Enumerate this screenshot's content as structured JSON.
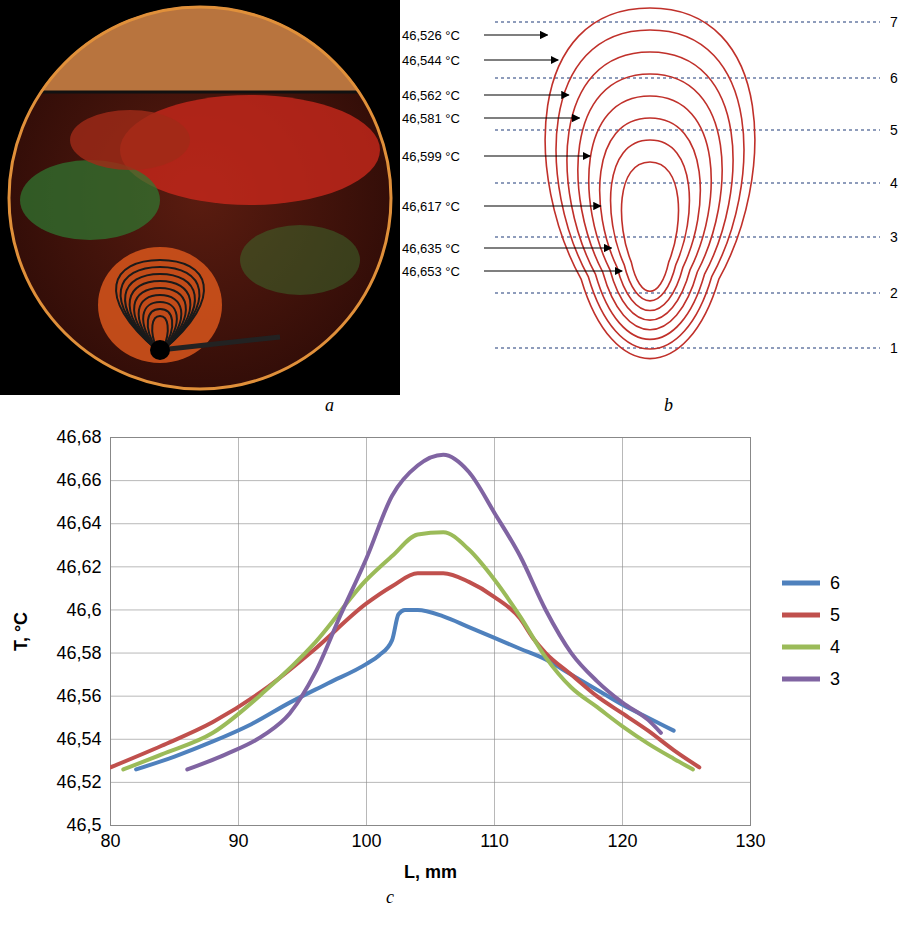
{
  "panel_labels": {
    "photo": "a",
    "diagram": "b",
    "chart": "c"
  },
  "diagram": {
    "isotherm_labels": [
      "46,526 °C",
      "46,544 °C",
      "46,562 °C",
      "46,581 °C",
      "46,599 °C",
      "46,617 °C",
      "46,635 °C",
      "46,653 °C"
    ],
    "section_lines": [
      "7",
      "6",
      "5",
      "4",
      "3",
      "2",
      "1"
    ]
  },
  "chart_data": {
    "type": "line",
    "x_label": "L, mm",
    "y_label": "T, °C",
    "xlim": [
      80,
      130
    ],
    "xticks": [
      80,
      90,
      100,
      110,
      120,
      130
    ],
    "ylim": [
      46.5,
      46.68
    ],
    "yticks": [
      {
        "value": 46.5,
        "label": "46,5"
      },
      {
        "value": 46.52,
        "label": "46,52"
      },
      {
        "value": 46.54,
        "label": "46,54"
      },
      {
        "value": 46.56,
        "label": "46,56"
      },
      {
        "value": 46.58,
        "label": "46,58"
      },
      {
        "value": 46.6,
        "label": "46,6"
      },
      {
        "value": 46.62,
        "label": "46,62"
      },
      {
        "value": 46.64,
        "label": "46,64"
      },
      {
        "value": 46.66,
        "label": "46,66"
      },
      {
        "value": 46.68,
        "label": "46,68"
      }
    ],
    "grid": true,
    "legend": "right",
    "series": [
      {
        "name": "6",
        "color": "#4f81bd",
        "x": [
          82,
          85,
          88,
          91,
          94,
          97,
          100,
          101,
          102,
          102.5,
          103,
          104,
          106,
          108,
          110,
          112,
          114,
          116,
          118,
          120,
          122,
          124
        ],
        "values": [
          46.526,
          46.532,
          46.539,
          46.547,
          46.557,
          46.566,
          46.575,
          46.579,
          46.586,
          46.598,
          46.6,
          46.6,
          46.597,
          46.592,
          46.587,
          46.582,
          46.577,
          46.57,
          46.563,
          46.556,
          46.55,
          46.544
        ]
      },
      {
        "name": "5",
        "color": "#c0504d",
        "x": [
          80,
          84,
          88,
          92,
          96,
          100,
          102,
          104,
          106,
          108,
          110,
          112,
          113,
          114,
          116,
          118,
          120,
          122,
          124,
          126
        ],
        "values": [
          46.527,
          46.537,
          46.548,
          46.563,
          46.582,
          46.603,
          46.611,
          46.617,
          46.617,
          46.613,
          46.606,
          46.596,
          46.587,
          46.58,
          46.57,
          46.56,
          46.552,
          46.544,
          46.535,
          46.527
        ]
      },
      {
        "name": "4",
        "color": "#9bbb59",
        "x": [
          81,
          84,
          88,
          92,
          96,
          100,
          102,
          104,
          106,
          108,
          110,
          112,
          114,
          116,
          118,
          120,
          122,
          124,
          125.5
        ],
        "values": [
          46.526,
          46.533,
          46.543,
          46.562,
          46.585,
          46.614,
          46.625,
          46.635,
          46.636,
          46.628,
          46.614,
          46.597,
          46.578,
          46.564,
          46.555,
          46.546,
          46.538,
          46.531,
          46.526
        ]
      },
      {
        "name": "3",
        "color": "#8064a2",
        "x": [
          86,
          89,
          92,
          94,
          96,
          98,
          100,
          102,
          104,
          106,
          108,
          110,
          112,
          114,
          116,
          118,
          120,
          122,
          123
        ],
        "values": [
          46.526,
          46.533,
          46.542,
          46.552,
          46.571,
          46.598,
          46.624,
          46.653,
          46.667,
          46.672,
          46.664,
          46.645,
          46.625,
          46.6,
          46.58,
          46.567,
          46.557,
          46.549,
          46.543
        ]
      }
    ]
  }
}
